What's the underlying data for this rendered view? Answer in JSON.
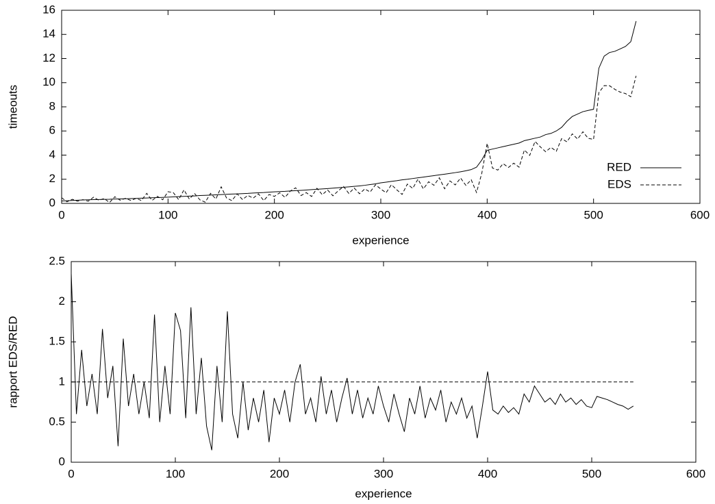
{
  "chart_data": [
    {
      "type": "line",
      "xlabel": "experience",
      "ylabel": "timeouts",
      "legend": "lower right",
      "xlim": [
        0,
        600
      ],
      "ylim": [
        0,
        16
      ],
      "xticks": [
        0,
        100,
        200,
        300,
        400,
        500,
        600
      ],
      "yticks": [
        0,
        2,
        4,
        6,
        8,
        10,
        12,
        14,
        16
      ],
      "x": [
        0,
        5,
        10,
        15,
        20,
        25,
        30,
        35,
        40,
        45,
        50,
        55,
        60,
        65,
        70,
        75,
        80,
        85,
        90,
        95,
        100,
        105,
        110,
        115,
        120,
        125,
        130,
        135,
        140,
        145,
        150,
        155,
        160,
        165,
        170,
        175,
        180,
        185,
        190,
        195,
        200,
        205,
        210,
        215,
        220,
        225,
        230,
        235,
        240,
        245,
        250,
        255,
        260,
        265,
        270,
        275,
        280,
        285,
        290,
        295,
        300,
        305,
        310,
        315,
        320,
        325,
        330,
        335,
        340,
        345,
        350,
        355,
        360,
        365,
        370,
        375,
        380,
        385,
        390,
        395,
        400,
        405,
        410,
        415,
        420,
        425,
        430,
        435,
        440,
        445,
        450,
        455,
        460,
        465,
        470,
        475,
        480,
        485,
        490,
        495,
        500,
        505,
        510,
        515,
        520,
        525,
        530,
        535,
        540
      ],
      "series": [
        {
          "name": "RED",
          "color": "#000000",
          "dashed": false,
          "values": [
            0.2,
            0.22,
            0.24,
            0.26,
            0.28,
            0.3,
            0.31,
            0.32,
            0.33,
            0.34,
            0.36,
            0.37,
            0.38,
            0.4,
            0.41,
            0.43,
            0.45,
            0.47,
            0.48,
            0.5,
            0.52,
            0.54,
            0.56,
            0.58,
            0.6,
            0.62,
            0.65,
            0.67,
            0.69,
            0.71,
            0.73,
            0.75,
            0.77,
            0.79,
            0.81,
            0.83,
            0.86,
            0.88,
            0.9,
            0.93,
            0.96,
            0.98,
            1.0,
            1.03,
            1.06,
            1.08,
            1.11,
            1.14,
            1.17,
            1.2,
            1.23,
            1.26,
            1.3,
            1.33,
            1.37,
            1.41,
            1.45,
            1.5,
            1.56,
            1.62,
            1.7,
            1.76,
            1.82,
            1.88,
            1.95,
            2.0,
            2.06,
            2.12,
            2.18,
            2.24,
            2.3,
            2.36,
            2.42,
            2.48,
            2.55,
            2.62,
            2.7,
            2.8,
            3.0,
            3.6,
            4.4,
            4.5,
            4.6,
            4.7,
            4.8,
            4.9,
            5.0,
            5.2,
            5.3,
            5.4,
            5.5,
            5.7,
            5.8,
            6.0,
            6.3,
            6.8,
            7.2,
            7.4,
            7.6,
            7.7,
            7.8,
            11.2,
            12.2,
            12.5,
            12.6,
            12.8,
            13.0,
            13.4,
            15.1
          ]
        },
        {
          "name": "EDS",
          "color": "#000000",
          "dashed": true,
          "values": [
            0.47,
            0.13,
            0.34,
            0.18,
            0.31,
            0.18,
            0.51,
            0.26,
            0.4,
            0.07,
            0.55,
            0.26,
            0.42,
            0.24,
            0.41,
            0.24,
            0.83,
            0.24,
            0.58,
            0.3,
            0.97,
            0.89,
            0.31,
            1.12,
            0.36,
            0.81,
            0.29,
            0.1,
            0.83,
            0.36,
            1.37,
            0.45,
            0.23,
            0.79,
            0.32,
            0.66,
            0.43,
            0.79,
            0.23,
            0.74,
            0.58,
            0.88,
            0.5,
            1.03,
            1.29,
            0.65,
            0.89,
            0.57,
            1.25,
            0.72,
            1.11,
            0.63,
            1.04,
            1.4,
            0.82,
            1.27,
            0.8,
            1.2,
            0.94,
            1.54,
            1.19,
            0.88,
            1.55,
            1.13,
            0.74,
            1.6,
            1.24,
            2.01,
            1.2,
            1.79,
            1.5,
            2.12,
            1.21,
            1.86,
            1.53,
            2.1,
            1.49,
            1.96,
            0.9,
            2.52,
            4.97,
            2.93,
            2.76,
            3.29,
            2.98,
            3.33,
            3.0,
            4.42,
            3.98,
            5.13,
            4.68,
            4.28,
            4.64,
            4.32,
            5.36,
            5.1,
            5.76,
            5.33,
            5.93,
            5.39,
            5.3,
            9.18,
            9.76,
            9.75,
            9.45,
            9.22,
            9.1,
            8.84,
            10.57
          ]
        }
      ]
    },
    {
      "type": "line",
      "xlabel": "experience",
      "ylabel": "rapport EDS/RED",
      "xlim": [
        0,
        600
      ],
      "ylim": [
        0,
        2.5
      ],
      "xticks": [
        0,
        100,
        200,
        300,
        400,
        500,
        600
      ],
      "yticks": [
        0,
        0.5,
        1,
        1.5,
        2,
        2.5
      ],
      "x": [
        0,
        5,
        10,
        15,
        20,
        25,
        30,
        35,
        40,
        45,
        50,
        55,
        60,
        65,
        70,
        75,
        80,
        85,
        90,
        95,
        100,
        105,
        110,
        115,
        120,
        125,
        130,
        135,
        140,
        145,
        150,
        155,
        160,
        165,
        170,
        175,
        180,
        185,
        190,
        195,
        200,
        205,
        210,
        215,
        220,
        225,
        230,
        235,
        240,
        245,
        250,
        255,
        260,
        265,
        270,
        275,
        280,
        285,
        290,
        295,
        300,
        305,
        310,
        315,
        320,
        325,
        330,
        335,
        340,
        345,
        350,
        355,
        360,
        365,
        370,
        375,
        380,
        385,
        390,
        395,
        400,
        405,
        410,
        415,
        420,
        425,
        430,
        435,
        440,
        445,
        450,
        455,
        460,
        465,
        470,
        475,
        480,
        485,
        490,
        495,
        500,
        505,
        510,
        515,
        520,
        525,
        530,
        535,
        540
      ],
      "series": [
        {
          "color": "#000000",
          "dashed": false,
          "values": [
            2.35,
            0.6,
            1.4,
            0.7,
            1.1,
            0.6,
            1.66,
            0.8,
            1.2,
            0.2,
            1.54,
            0.7,
            1.1,
            0.6,
            1.0,
            0.55,
            1.84,
            0.5,
            1.2,
            0.6,
            1.86,
            1.64,
            0.55,
            1.93,
            0.6,
            1.3,
            0.45,
            0.15,
            1.2,
            0.5,
            1.88,
            0.6,
            0.3,
            1.0,
            0.4,
            0.8,
            0.5,
            0.9,
            0.25,
            0.8,
            0.6,
            0.9,
            0.5,
            1.0,
            1.22,
            0.6,
            0.8,
            0.5,
            1.07,
            0.6,
            0.9,
            0.5,
            0.8,
            1.05,
            0.6,
            0.9,
            0.55,
            0.8,
            0.6,
            0.95,
            0.7,
            0.5,
            0.85,
            0.6,
            0.38,
            0.8,
            0.6,
            0.95,
            0.55,
            0.8,
            0.65,
            0.9,
            0.5,
            0.75,
            0.6,
            0.8,
            0.55,
            0.7,
            0.3,
            0.7,
            1.13,
            0.65,
            0.6,
            0.7,
            0.62,
            0.68,
            0.6,
            0.85,
            0.75,
            0.95,
            0.85,
            0.75,
            0.8,
            0.72,
            0.85,
            0.75,
            0.8,
            0.72,
            0.78,
            0.7,
            0.68,
            0.82,
            0.8,
            0.78,
            0.75,
            0.72,
            0.7,
            0.66,
            0.7
          ]
        }
      ],
      "reference_lines": [
        {
          "x": [
            0,
            540
          ],
          "values": [
            1,
            1
          ],
          "color": "#000000",
          "dashed": true
        }
      ]
    }
  ]
}
